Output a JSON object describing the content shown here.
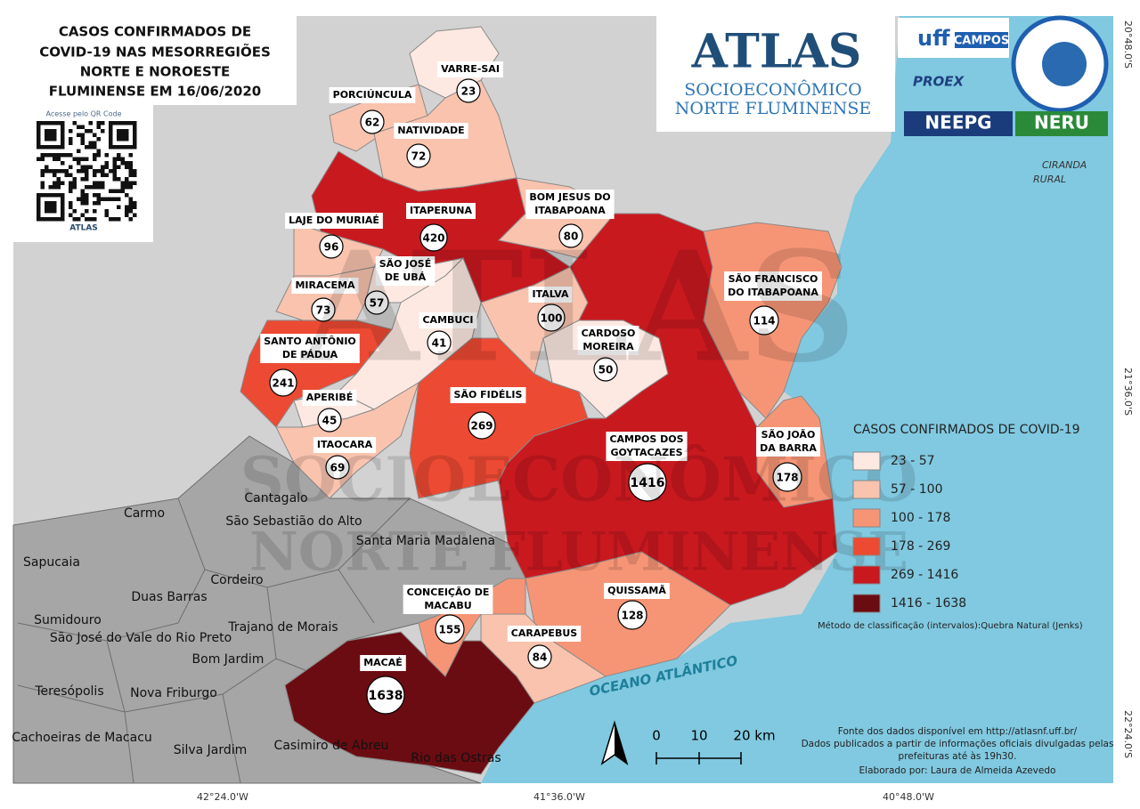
{
  "title": [
    "CASOS CONFIRMADOS DE",
    "COVID-19 NAS MESORREGIÕES",
    "NORTE E NOROESTE",
    "FLUMINENSE EM 16/06/2020"
  ],
  "qr": {
    "caption": "Acesse pelo QR Code",
    "brand": "ATLAS"
  },
  "logo": {
    "title": "ATLAS",
    "line1": "SOCIOECONÔMICO",
    "line2": "NORTE FLUMINENSE"
  },
  "partners": [
    "uff",
    "CAMPOS",
    "PROEX",
    "NEEPG",
    "NERU",
    "CIRANDA",
    "RURAL"
  ],
  "municipalities": [
    {
      "name": [
        "VARRE-SAI"
      ],
      "cases": 23,
      "color": "#fde9e2"
    },
    {
      "name": [
        "PORCIÚNCULA"
      ],
      "cases": 62,
      "color": "#f9c3ae"
    },
    {
      "name": [
        "NATIVIDADE"
      ],
      "cases": 72,
      "color": "#f9c3ae"
    },
    {
      "name": [
        "ITAPERUNA"
      ],
      "cases": 420,
      "color": "#c8191f"
    },
    {
      "name": [
        "BOM JESUS DO",
        "ITABAPOANA"
      ],
      "cases": 80,
      "color": "#f9c3ae"
    },
    {
      "name": [
        "LAJE DO MURIAÉ"
      ],
      "cases": 96,
      "color": "#f9c3ae"
    },
    {
      "name": [
        "SÃO JOSÉ",
        "DE UBÁ"
      ],
      "cases": 57,
      "color": "#fde9e2"
    },
    {
      "name": [
        "MIRACEMA"
      ],
      "cases": 73,
      "color": "#f9c3ae"
    },
    {
      "name": [
        "CAMBUCI"
      ],
      "cases": 41,
      "color": "#fde9e2"
    },
    {
      "name": [
        "ITALVA"
      ],
      "cases": 100,
      "color": "#f9c3ae"
    },
    {
      "name": [
        "CARDOSO",
        "MOREIRA"
      ],
      "cases": 50,
      "color": "#fde9e2"
    },
    {
      "name": [
        "SANTO ANTÔNIO",
        "DE PÁDUA"
      ],
      "cases": 241,
      "color": "#ec4a33"
    },
    {
      "name": [
        "APERIBÉ"
      ],
      "cases": 45,
      "color": "#fde9e2"
    },
    {
      "name": [
        "SÃO FIDÉLIS"
      ],
      "cases": 269,
      "color": "#ec4a33"
    },
    {
      "name": [
        "ITAOCARA"
      ],
      "cases": 69,
      "color": "#f9c3ae"
    },
    {
      "name": [
        "CAMPOS DOS",
        "GOYTACAZES"
      ],
      "cases": 1416,
      "color": "#c8191f"
    },
    {
      "name": [
        "SÃO FRANCISCO",
        "DO ITABAPOANA"
      ],
      "cases": 114,
      "color": "#f69576"
    },
    {
      "name": [
        "SÃO JOÃO",
        "DA BARRA"
      ],
      "cases": 178,
      "color": "#f69576"
    },
    {
      "name": [
        "CONCEIÇÃO DE",
        "MACABU"
      ],
      "cases": 155,
      "color": "#f69576"
    },
    {
      "name": [
        "QUISSAMÃ"
      ],
      "cases": 128,
      "color": "#f69576"
    },
    {
      "name": [
        "CARAPEBUS"
      ],
      "cases": 84,
      "color": "#f9c3ae"
    },
    {
      "name": [
        "MACAÉ"
      ],
      "cases": 1638,
      "color": "#6b0c12"
    }
  ],
  "neighbors": [
    "Cantagalo",
    "Carmo",
    "São Sebastião do Alto",
    "Santa Maria Madalena",
    "Sapucaia",
    "Duas Barras",
    "Cordeiro",
    "Sumidouro",
    "São José do Vale do Rio Preto",
    "Trajano de Morais",
    "Bom Jardim",
    "Teresópolis",
    "Nova Friburgo",
    "Cachoeiras de Macacu",
    "Silva Jardim",
    "Casimiro de Abreu",
    "Rio das Ostras"
  ],
  "ocean": "OCEANO ATLÂNTICO",
  "legend": {
    "title": "CASOS CONFIRMADOS DE COVID-19",
    "classes": [
      {
        "label": "23 - 57",
        "color": "#fde9e2"
      },
      {
        "label": "57 - 100",
        "color": "#f9c3ae"
      },
      {
        "label": "100 - 178",
        "color": "#f69576"
      },
      {
        "label": "178 - 269",
        "color": "#ec4a33"
      },
      {
        "label": "269 - 1416",
        "color": "#c8191f"
      },
      {
        "label": "1416 - 1638",
        "color": "#6b0c12"
      }
    ],
    "method": "Método de classificação (intervalos):Quebra Natural (Jenks)"
  },
  "scale": [
    "0",
    "10",
    "20 km"
  ],
  "coordinates": {
    "lon": [
      "42°24.0'W",
      "41°36.0'W",
      "40°48.0'W"
    ],
    "lat": [
      "20°48.0'S",
      "21°36.0'S",
      "22°24.0'S"
    ]
  },
  "source": [
    "Fonte dos dados disponível em http://atlasnf.uff.br/",
    "Dados publicados a partir de informações oficiais divulgadas pelas",
    "prefeituras até às 19h30.",
    "Elaborado por: Laura de Almeida Azevedo"
  ]
}
